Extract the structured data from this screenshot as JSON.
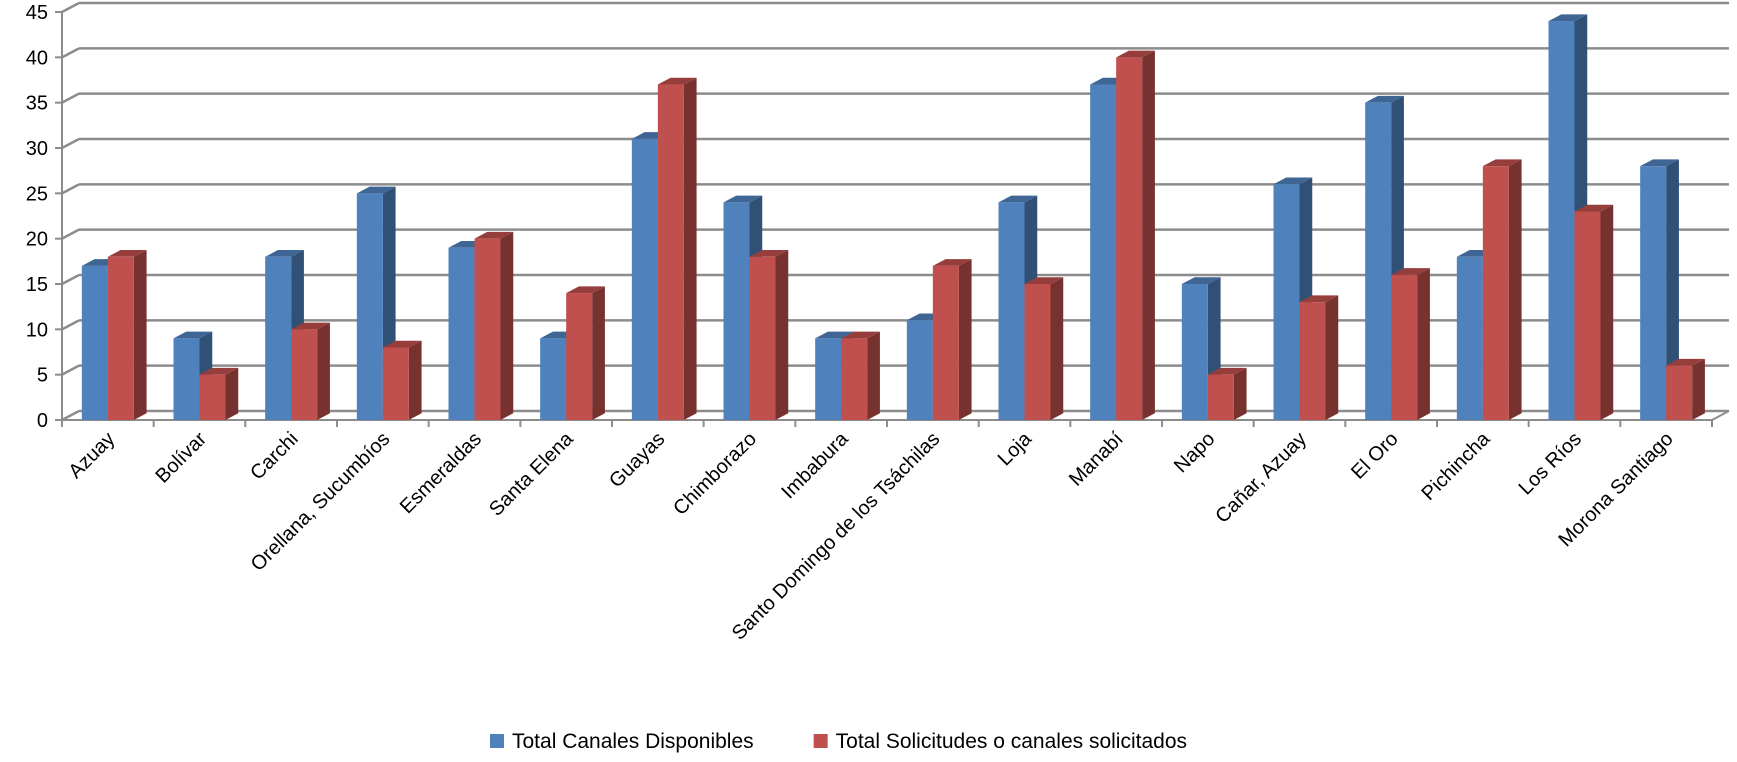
{
  "chart_data": {
    "type": "bar",
    "title": "",
    "xlabel": "",
    "ylabel": "",
    "ylim": [
      0,
      45
    ],
    "yticks": [
      0,
      5,
      10,
      15,
      20,
      25,
      30,
      35,
      40,
      45
    ],
    "grid": true,
    "legend_position": "bottom",
    "categories": [
      "Azuay",
      "Bolívar",
      "Carchi",
      "Orellana, Sucumbíos",
      "Esmeraldas",
      "Santa Elena",
      "Guayas",
      "Chimborazo",
      "Imbabura",
      "Santo Domingo de los Tsáchilas",
      "Loja",
      "Manabí",
      "Napo",
      "Cañar, Azuay",
      "El Oro",
      "Pichincha",
      "Los Ríos",
      "Morona Santiago"
    ],
    "series": [
      {
        "name": "Total Canales Disponibles",
        "color": "#4F81BD",
        "values": [
          17,
          9,
          18,
          25,
          19,
          9,
          31,
          24,
          9,
          11,
          24,
          37,
          15,
          26,
          35,
          18,
          44,
          28
        ]
      },
      {
        "name": "Total Solicitudes o canales solicitados",
        "color": "#C0504D",
        "values": [
          18,
          5,
          10,
          8,
          20,
          14,
          37,
          18,
          9,
          17,
          15,
          40,
          5,
          13,
          16,
          28,
          23,
          6
        ]
      }
    ]
  }
}
